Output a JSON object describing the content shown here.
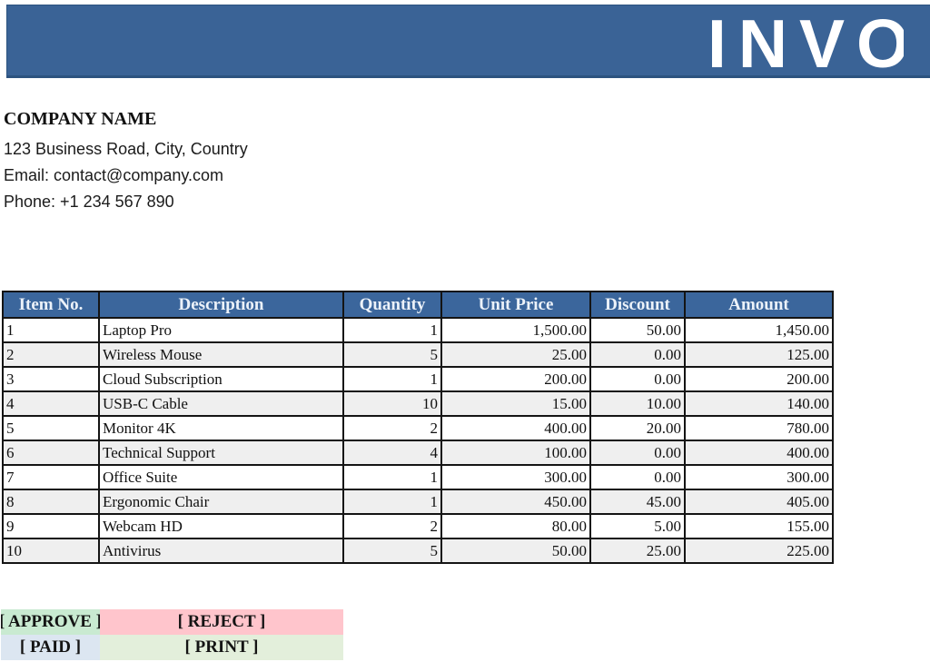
{
  "header": {
    "title": "INVOICE"
  },
  "company": {
    "name": "COMPANY NAME",
    "address": "123 Business Road, City, Country",
    "email": "Email: contact@company.com",
    "phone": "Phone: +1 234 567 890"
  },
  "table": {
    "columns": [
      "Item No.",
      "Description",
      "Quantity",
      "Unit Price",
      "Discount",
      "Amount"
    ],
    "rows": [
      [
        "1",
        "Laptop Pro",
        "1",
        "1,500.00",
        "50.00",
        "1,450.00"
      ],
      [
        "2",
        "Wireless Mouse",
        "5",
        "25.00",
        "0.00",
        "125.00"
      ],
      [
        "3",
        "Cloud Subscription",
        "1",
        "200.00",
        "0.00",
        "200.00"
      ],
      [
        "4",
        "USB-C Cable",
        "10",
        "15.00",
        "10.00",
        "140.00"
      ],
      [
        "5",
        "Monitor 4K",
        "2",
        "400.00",
        "20.00",
        "780.00"
      ],
      [
        "6",
        "Technical Support",
        "4",
        "100.00",
        "0.00",
        "400.00"
      ],
      [
        "7",
        "Office Suite",
        "1",
        "300.00",
        "0.00",
        "300.00"
      ],
      [
        "8",
        "Ergonomic Chair",
        "1",
        "450.00",
        "45.00",
        "405.00"
      ],
      [
        "9",
        "Webcam HD",
        "2",
        "80.00",
        "5.00",
        "155.00"
      ],
      [
        "10",
        "Antivirus",
        "5",
        "50.00",
        "25.00",
        "225.00"
      ]
    ]
  },
  "actions": {
    "approve": "[ APPROVE ]",
    "reject": "[ REJECT ]",
    "paid": "[ PAID ]",
    "print": "[ PRINT ]"
  },
  "colors": {
    "banner_blue": "#3A6396",
    "table_header_blue": "#3B669C",
    "stripe_gray": "#EFEFEF",
    "approve_green": "#C9EAD1",
    "reject_pink": "#FFC5CC",
    "paid_blue": "#DCE6F1",
    "print_green": "#E3EFDB"
  }
}
